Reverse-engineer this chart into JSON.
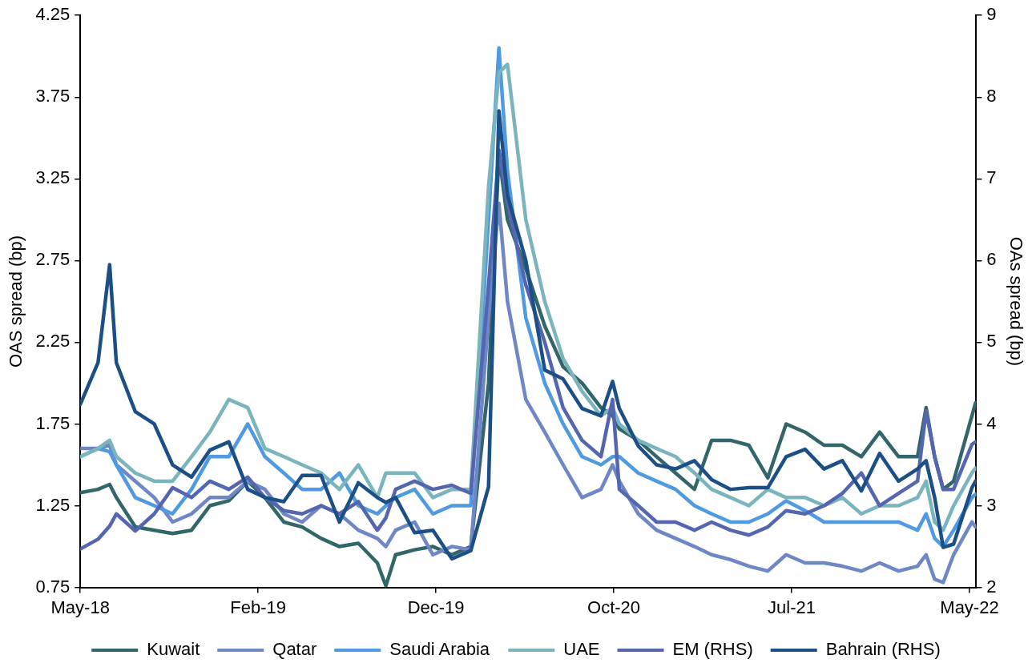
{
  "chart_data": {
    "type": "line",
    "ylabel": "OAS spread (bp)",
    "y2label": "OAs spread (bp)",
    "x": [
      "2018-05-13",
      "2018-06-11",
      "2018-06-30",
      "2018-07-11",
      "2018-08-11",
      "2018-09-11",
      "2018-10-11",
      "2018-11-11",
      "2018-12-11",
      "2019-01-11",
      "2019-02-11",
      "2019-03-11",
      "2019-04-11",
      "2019-05-11",
      "2019-06-11",
      "2019-07-11",
      "2019-08-11",
      "2019-09-11",
      "2019-09-25",
      "2019-10-11",
      "2019-11-11",
      "2019-12-11",
      "2020-01-11",
      "2020-02-11",
      "2020-03-11",
      "2020-03-28",
      "2020-04-11",
      "2020-05-11",
      "2020-06-11",
      "2020-07-11",
      "2020-08-11",
      "2020-09-11",
      "2020-09-30",
      "2020-10-11",
      "2020-11-11",
      "2020-12-11",
      "2021-01-11",
      "2021-02-11",
      "2021-03-11",
      "2021-04-11",
      "2021-05-11",
      "2021-06-11",
      "2021-07-11",
      "2021-08-11",
      "2021-09-11",
      "2021-10-11",
      "2021-11-11",
      "2021-12-11",
      "2022-01-11",
      "2022-02-11",
      "2022-02-25",
      "2022-03-11",
      "2022-03-25",
      "2022-04-11",
      "2022-05-11",
      "2022-05-17"
    ],
    "series": [
      {
        "name": "Kuwait",
        "color": "#33666b",
        "values": [
          1.33,
          1.35,
          1.38,
          1.3,
          1.12,
          1.1,
          1.08,
          1.1,
          1.25,
          1.28,
          1.4,
          1.3,
          1.15,
          1.12,
          1.05,
          1.0,
          1.02,
          0.9,
          0.76,
          0.95,
          0.98,
          1.0,
          0.95,
          1.0,
          2.0,
          3.4,
          3.0,
          2.7,
          2.35,
          2.1,
          2.0,
          1.85,
          1.8,
          1.72,
          1.65,
          1.55,
          1.45,
          1.35,
          1.65,
          1.65,
          1.62,
          1.42,
          1.75,
          1.7,
          1.62,
          1.62,
          1.55,
          1.7,
          1.55,
          1.55,
          1.85,
          1.55,
          1.35,
          1.4,
          1.8,
          1.88
        ]
      },
      {
        "name": "Qatar",
        "color": "#6f87c4",
        "values": [
          1.6,
          1.6,
          1.62,
          1.5,
          1.4,
          1.3,
          1.15,
          1.2,
          1.3,
          1.3,
          1.4,
          1.35,
          1.2,
          1.15,
          1.25,
          1.2,
          1.1,
          1.05,
          1.0,
          1.1,
          1.15,
          0.95,
          1.0,
          0.98,
          2.4,
          3.1,
          2.5,
          1.9,
          1.7,
          1.5,
          1.3,
          1.35,
          1.5,
          1.4,
          1.2,
          1.1,
          1.05,
          1.0,
          0.95,
          0.92,
          0.88,
          0.85,
          0.95,
          0.9,
          0.9,
          0.88,
          0.85,
          0.9,
          0.85,
          0.88,
          0.95,
          0.8,
          0.78,
          0.95,
          1.15,
          1.12
        ]
      },
      {
        "name": "Saudi Arabia",
        "color": "#4f9ae0",
        "values": [
          1.55,
          1.6,
          1.58,
          1.5,
          1.3,
          1.25,
          1.2,
          1.35,
          1.55,
          1.55,
          1.75,
          1.55,
          1.45,
          1.35,
          1.35,
          1.45,
          1.25,
          1.2,
          1.25,
          1.3,
          1.35,
          1.2,
          1.25,
          1.25,
          3.0,
          4.05,
          3.3,
          2.4,
          2.0,
          1.75,
          1.55,
          1.5,
          1.55,
          1.55,
          1.45,
          1.4,
          1.35,
          1.25,
          1.2,
          1.15,
          1.15,
          1.2,
          1.28,
          1.22,
          1.15,
          1.15,
          1.15,
          1.15,
          1.15,
          1.1,
          1.2,
          1.05,
          1.0,
          1.1,
          1.3,
          1.32
        ]
      },
      {
        "name": "UAE",
        "color": "#7ab5bd",
        "values": [
          1.55,
          1.6,
          1.65,
          1.55,
          1.45,
          1.4,
          1.4,
          1.55,
          1.7,
          1.9,
          1.85,
          1.6,
          1.55,
          1.5,
          1.45,
          1.35,
          1.5,
          1.3,
          1.45,
          1.45,
          1.45,
          1.3,
          1.35,
          1.35,
          3.2,
          3.9,
          3.95,
          3.0,
          2.5,
          2.15,
          1.95,
          1.8,
          1.85,
          1.75,
          1.65,
          1.6,
          1.55,
          1.45,
          1.35,
          1.3,
          1.25,
          1.35,
          1.3,
          1.3,
          1.25,
          1.3,
          1.2,
          1.25,
          1.25,
          1.3,
          1.4,
          1.15,
          1.1,
          1.25,
          1.45,
          1.48
        ]
      },
      {
        "name": "EM (RHS)",
        "color": "#5566b0",
        "axis": "y2",
        "values": [
          2.47,
          2.59,
          2.75,
          2.9,
          2.69,
          2.9,
          3.22,
          3.1,
          3.3,
          3.2,
          3.35,
          3.1,
          2.94,
          2.9,
          3.0,
          2.9,
          3.05,
          2.7,
          2.85,
          3.2,
          3.3,
          3.2,
          3.25,
          3.15,
          5.7,
          7.35,
          6.7,
          5.7,
          5.0,
          4.2,
          3.8,
          3.6,
          4.3,
          3.2,
          3.0,
          2.8,
          2.8,
          2.7,
          2.8,
          2.7,
          2.64,
          2.74,
          2.94,
          2.9,
          3.0,
          3.15,
          3.4,
          3.0,
          3.15,
          3.3,
          4.16,
          3.6,
          3.2,
          3.2,
          3.75,
          3.78
        ]
      },
      {
        "name": "Bahrain (RHS)",
        "color": "#1b4f86",
        "axis": "y2",
        "values": [
          4.24,
          4.75,
          5.95,
          4.75,
          4.15,
          4.0,
          3.5,
          3.35,
          3.68,
          3.78,
          3.2,
          3.1,
          3.05,
          3.37,
          3.37,
          2.8,
          3.28,
          3.1,
          3.04,
          3.1,
          2.67,
          2.7,
          2.35,
          2.45,
          3.23,
          7.83,
          6.8,
          6.0,
          4.66,
          4.55,
          4.19,
          4.1,
          4.52,
          4.19,
          3.73,
          3.5,
          3.45,
          3.55,
          3.32,
          3.2,
          3.22,
          3.22,
          3.6,
          3.69,
          3.45,
          3.55,
          3.18,
          3.64,
          3.3,
          3.45,
          3.55,
          3.1,
          2.49,
          2.53,
          3.22,
          3.3
        ]
      }
    ],
    "xlim": [
      "2018-05-13",
      "2022-05-18"
    ],
    "xticks": [
      {
        "value": "2018-05-13",
        "label": "May-18"
      },
      {
        "value": "2019-02-28",
        "label": "Feb-19"
      },
      {
        "value": "2019-12-16",
        "label": "Dec-19"
      },
      {
        "value": "2020-10-02",
        "label": "Oct-20"
      },
      {
        "value": "2021-07-20",
        "label": "Jul-21"
      },
      {
        "value": "2022-05-07",
        "label": "May-22"
      }
    ],
    "ylim": [
      0.75,
      4.25
    ],
    "yticks": [
      0.75,
      1.25,
      1.75,
      2.25,
      2.75,
      3.25,
      3.75,
      4.25
    ],
    "y2lim": [
      2,
      9
    ],
    "y2ticks": [
      2,
      3,
      4,
      5,
      6,
      7,
      8,
      9
    ],
    "grid": false,
    "legend": "bottom",
    "marker": "none",
    "line_style": "solid"
  }
}
